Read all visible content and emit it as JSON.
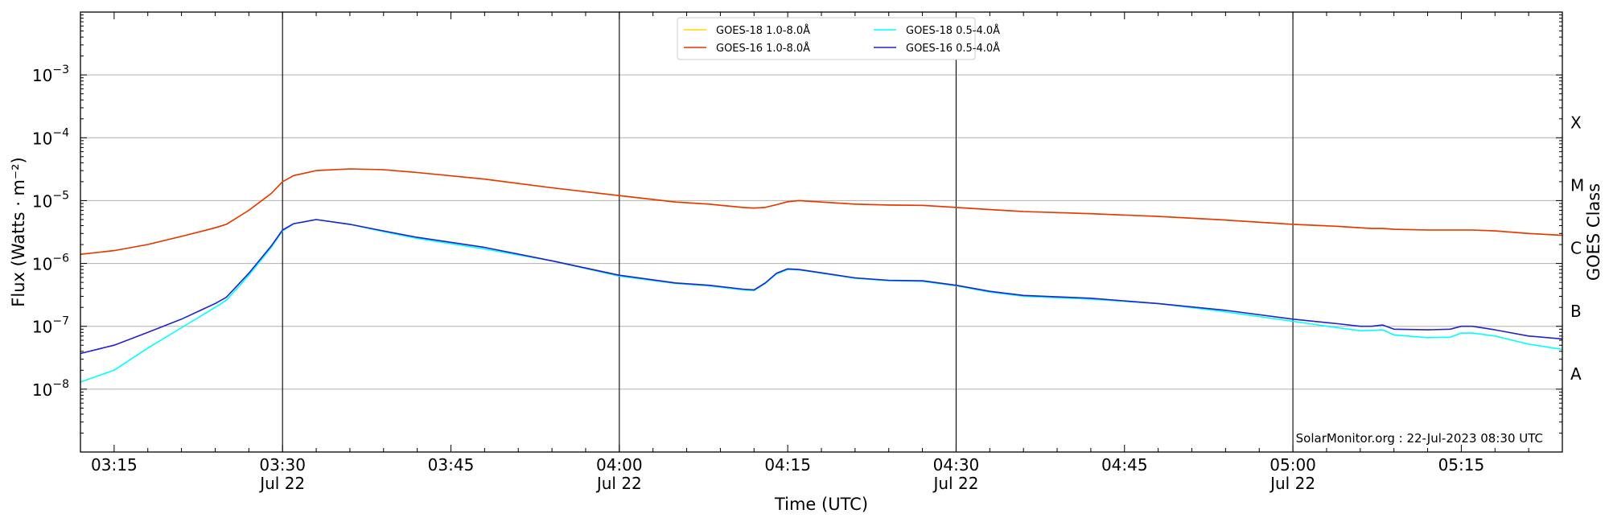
{
  "chart_data": {
    "type": "line",
    "title": "",
    "xlabel": "Time (UTC)",
    "ylabel": "Flux (Watts · m⁻²)",
    "y2label": "GOES Class",
    "yscale": "log",
    "xlim": [
      "2023-07-22 03:12",
      "2023-07-22 05:24"
    ],
    "ylim": [
      1e-09,
      0.01
    ],
    "grid": "horizontal at decades",
    "legend_position": "top-center",
    "credit": "SolarMonitor.org : 22-Jul-2023 08:30 UTC",
    "x_ticks": [
      {
        "time": "03:15",
        "label": "03:15",
        "sublabel": ""
      },
      {
        "time": "03:30",
        "label": "03:30",
        "sublabel": "Jul 22"
      },
      {
        "time": "03:45",
        "label": "03:45",
        "sublabel": ""
      },
      {
        "time": "04:00",
        "label": "04:00",
        "sublabel": "Jul 22"
      },
      {
        "time": "04:15",
        "label": "04:15",
        "sublabel": ""
      },
      {
        "time": "04:30",
        "label": "04:30",
        "sublabel": "Jul 22"
      },
      {
        "time": "04:45",
        "label": "04:45",
        "sublabel": ""
      },
      {
        "time": "05:00",
        "label": "05:00",
        "sublabel": "Jul 22"
      },
      {
        "time": "05:15",
        "label": "05:15",
        "sublabel": ""
      }
    ],
    "vertical_lines": [
      "03:30",
      "04:00",
      "04:30",
      "05:00"
    ],
    "y_ticks": [
      {
        "value": 1e-08,
        "base": "10",
        "exp": "−8"
      },
      {
        "value": 1e-07,
        "base": "10",
        "exp": "−7"
      },
      {
        "value": 1e-06,
        "base": "10",
        "exp": "−6"
      },
      {
        "value": 1e-05,
        "base": "10",
        "exp": "−5"
      },
      {
        "value": 0.0001,
        "base": "10",
        "exp": "−4"
      },
      {
        "value": 0.001,
        "base": "10",
        "exp": "−3"
      }
    ],
    "goes_classes": [
      {
        "label": "A",
        "value": 1.8e-08
      },
      {
        "label": "B",
        "value": 1.8e-07
      },
      {
        "label": "C",
        "value": 1.8e-06
      },
      {
        "label": "M",
        "value": 1.8e-05
      },
      {
        "label": "X",
        "value": 0.00018
      }
    ],
    "x": [
      "03:12",
      "03:15",
      "03:18",
      "03:21",
      "03:24",
      "03:25",
      "03:27",
      "03:29",
      "03:30",
      "03:31",
      "03:33",
      "03:36",
      "03:39",
      "03:42",
      "03:48",
      "03:54",
      "04:00",
      "04:05",
      "04:08",
      "04:11",
      "04:12",
      "04:13",
      "04:14",
      "04:15",
      "04:16",
      "04:18",
      "04:21",
      "04:24",
      "04:27",
      "04:30",
      "04:33",
      "04:36",
      "04:42",
      "04:48",
      "04:54",
      "05:00",
      "05:04",
      "05:06",
      "05:07",
      "05:08",
      "05:09",
      "05:12",
      "05:14",
      "05:15",
      "05:16",
      "05:18",
      "05:21",
      "05:24"
    ],
    "series": [
      {
        "name": "GOES-18 1.0-8.0Å",
        "color": "#ffd700",
        "values": [
          1.4e-06,
          1.6e-06,
          2e-06,
          2.7e-06,
          3.7e-06,
          4.2e-06,
          7e-06,
          1.3e-05,
          2e-05,
          2.5e-05,
          3e-05,
          3.2e-05,
          3.1e-05,
          2.8e-05,
          2.2e-05,
          1.6e-05,
          1.2e-05,
          9.5e-06,
          8.8e-06,
          7.8e-06,
          7.6e-06,
          7.8e-06,
          8.6e-06,
          9.6e-06,
          1e-05,
          9.5e-06,
          8.8e-06,
          8.5e-06,
          8.4e-06,
          7.8e-06,
          7.2e-06,
          6.7e-06,
          6.2e-06,
          5.6e-06,
          4.9e-06,
          4.2e-06,
          3.9e-06,
          3.7e-06,
          3.6e-06,
          3.6e-06,
          3.5e-06,
          3.4e-06,
          3.4e-06,
          3.4e-06,
          3.4e-06,
          3.3e-06,
          3e-06,
          2.8e-06
        ]
      },
      {
        "name": "GOES-16 1.0-8.0Å",
        "color": "#e8340b",
        "values": [
          1.4e-06,
          1.6e-06,
          2e-06,
          2.7e-06,
          3.7e-06,
          4.2e-06,
          7e-06,
          1.3e-05,
          2e-05,
          2.5e-05,
          3e-05,
          3.2e-05,
          3.1e-05,
          2.8e-05,
          2.2e-05,
          1.6e-05,
          1.2e-05,
          9.5e-06,
          8.8e-06,
          7.8e-06,
          7.6e-06,
          7.8e-06,
          8.6e-06,
          9.6e-06,
          1e-05,
          9.5e-06,
          8.8e-06,
          8.5e-06,
          8.4e-06,
          7.8e-06,
          7.2e-06,
          6.7e-06,
          6.2e-06,
          5.6e-06,
          4.9e-06,
          4.2e-06,
          3.9e-06,
          3.7e-06,
          3.6e-06,
          3.6e-06,
          3.5e-06,
          3.4e-06,
          3.4e-06,
          3.4e-06,
          3.4e-06,
          3.3e-06,
          3e-06,
          2.8e-06
        ]
      },
      {
        "name": "GOES-18 0.5-4.0Å",
        "color": "#00ffff",
        "values": [
          1.3e-08,
          2e-08,
          4.5e-08,
          9.5e-08,
          2e-07,
          2.6e-07,
          6.5e-07,
          1.8e-06,
          3.3e-06,
          4.3e-06,
          5e-06,
          4.2e-06,
          3.2e-06,
          2.5e-06,
          1.7e-06,
          1.1e-06,
          6.3e-07,
          4.8e-07,
          4.4e-07,
          3.8e-07,
          3.7e-07,
          4.8e-07,
          6.8e-07,
          8e-07,
          7.9e-07,
          7e-07,
          5.8e-07,
          5.3e-07,
          5.2e-07,
          4.4e-07,
          3.5e-07,
          3e-07,
          2.7e-07,
          2.3e-07,
          1.7e-07,
          1.2e-07,
          9.5e-08,
          8.5e-08,
          8.6e-08,
          8.8e-08,
          7.3e-08,
          6.6e-08,
          6.7e-08,
          7.8e-08,
          7.8e-08,
          7e-08,
          5.2e-08,
          4.3e-08
        ]
      },
      {
        "name": "GOES-16 0.5-4.0Å",
        "color": "#2222cc",
        "values": [
          3.7e-08,
          5e-08,
          8e-08,
          1.3e-07,
          2.3e-07,
          2.9e-07,
          7e-07,
          1.9e-06,
          3.4e-06,
          4.3e-06,
          5e-06,
          4.2e-06,
          3.3e-06,
          2.6e-06,
          1.8e-06,
          1.1e-06,
          6.5e-07,
          4.9e-07,
          4.5e-07,
          3.9e-07,
          3.8e-07,
          4.9e-07,
          7e-07,
          8.2e-07,
          8e-07,
          7.1e-07,
          5.9e-07,
          5.4e-07,
          5.3e-07,
          4.5e-07,
          3.6e-07,
          3.1e-07,
          2.8e-07,
          2.3e-07,
          1.8e-07,
          1.3e-07,
          1.1e-07,
          1e-07,
          1e-07,
          1.05e-07,
          9e-08,
          8.8e-08,
          9e-08,
          1e-07,
          1e-07,
          8.8e-08,
          7e-08,
          6.3e-08
        ]
      }
    ]
  }
}
